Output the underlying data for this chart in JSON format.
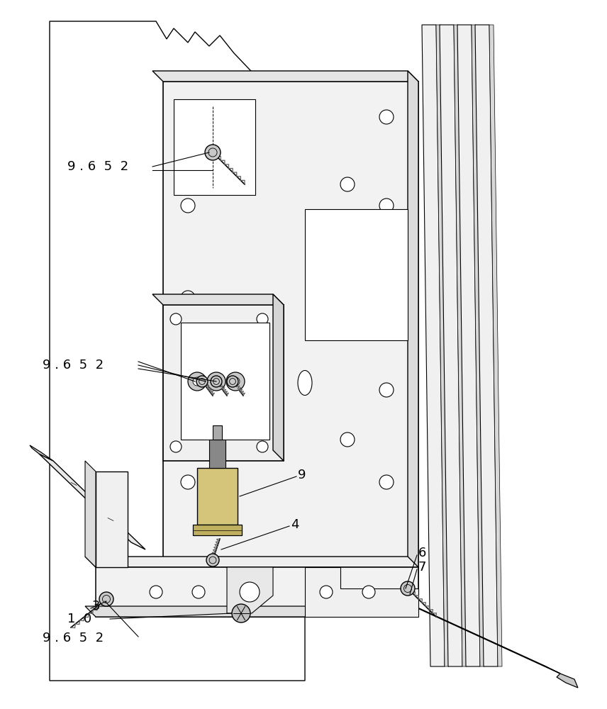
{
  "bg": "#ffffff",
  "lc": "#000000",
  "fill_light": "#f5f5f5",
  "fill_mid": "#e8e8e8",
  "fill_dark": "#d8d8d8",
  "fill_rail": "#efefef",
  "fig_w": 8.56,
  "fig_h": 10.0,
  "dpi": 100
}
